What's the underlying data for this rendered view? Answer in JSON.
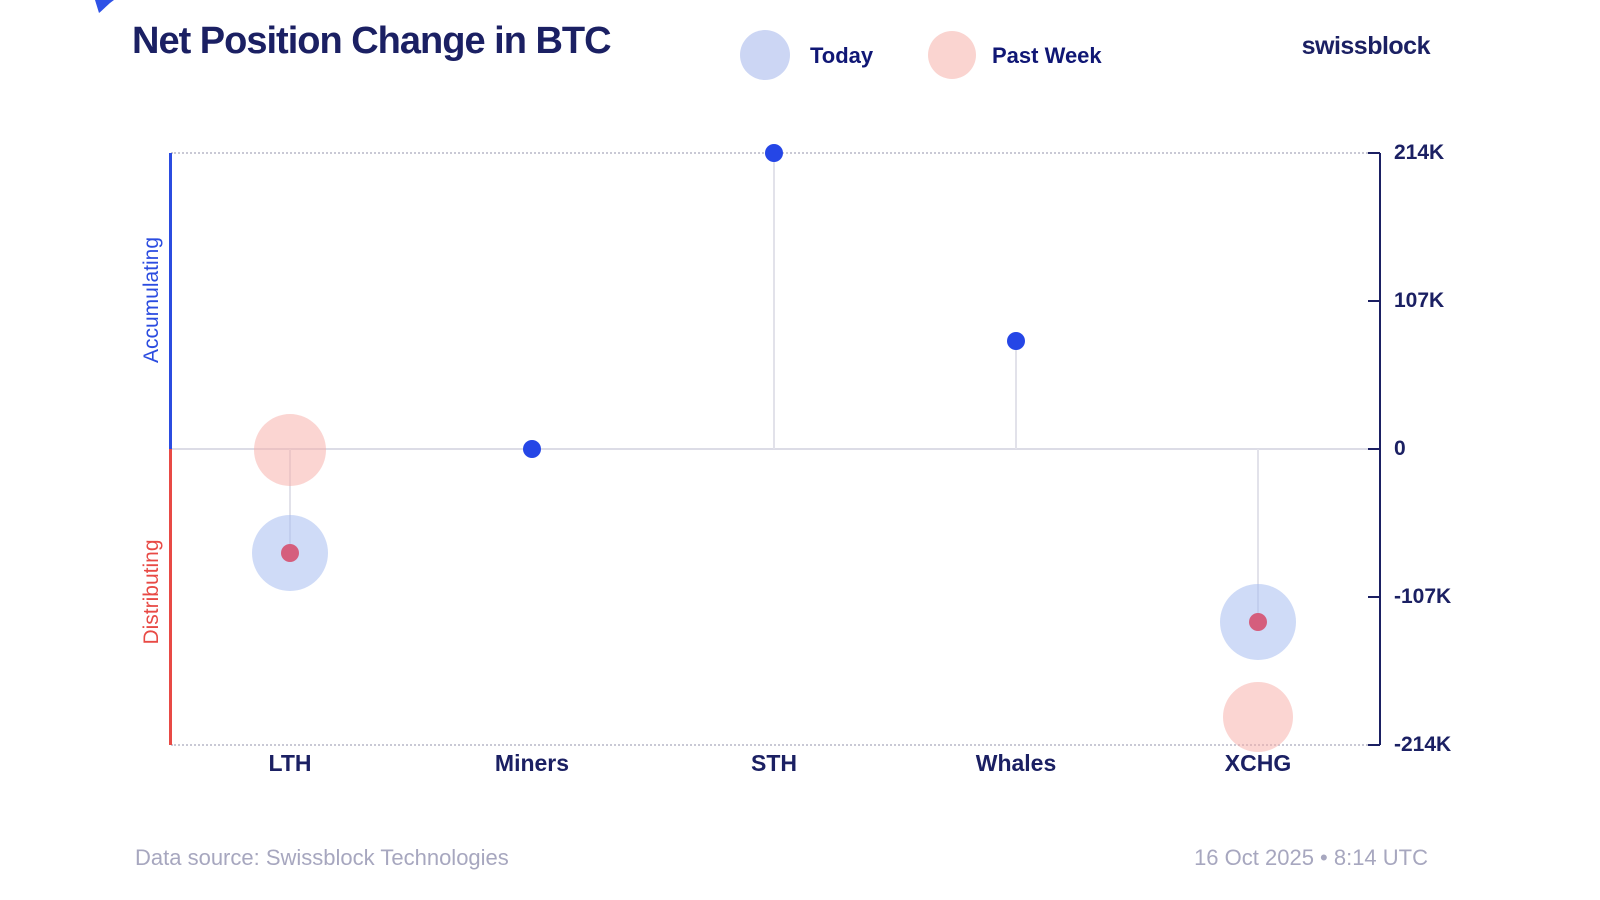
{
  "header": {
    "title": "Net Position Change in BTC",
    "logo": "swissblock",
    "legend": [
      {
        "label": "Today",
        "swatch": "light-blue"
      },
      {
        "label": "Past Week",
        "swatch": "light-pink"
      }
    ]
  },
  "axes": {
    "left_top_label": "Accumulating",
    "left_bottom_label": "Distributing",
    "ytick_labels": [
      "214K",
      "107K",
      "0",
      "-107K",
      "-214K"
    ]
  },
  "footer": {
    "source": "Data source: Swissblock Technologies",
    "timestamp": "16 Oct 2025 • 8:14 UTC"
  },
  "colors": {
    "navy_text": "#1b2063",
    "legend_text": "#101775",
    "accent_blue": "#2b4ce0",
    "accent_red": "#e84a45",
    "dot_blue": "#2546e6",
    "dot_crimson": "#d55e7d",
    "bubble_blue": "rgba(168,189,240,0.55)",
    "bubble_pink": "rgba(247,172,166,0.5)",
    "legend_swatch_blue": "#ccd6f4",
    "legend_swatch_pink": "#fad4d0",
    "grid": "#c9c9d5",
    "zero_line": "#dcdce6",
    "stem": "#e2e2ea",
    "footer_text": "#a7a7bf"
  },
  "chart_data": {
    "type": "lollipop",
    "title": "Net Position Change in BTC",
    "unit": "thousand BTC",
    "categories": [
      "LTH",
      "Miners",
      "STH",
      "Whales",
      "XCHG"
    ],
    "ylim": [
      -214,
      214
    ],
    "yticks": [
      214,
      107,
      0,
      -107,
      -214
    ],
    "ytick_labels": [
      "214K",
      "107K",
      "0",
      "-107K",
      "-214K"
    ],
    "grid": "dotted horizontal lines at +214K and -214K, solid light line at 0",
    "legend_position": "top",
    "series": [
      {
        "name": "Today",
        "values": [
          -75,
          0,
          214,
          78,
          -125
        ]
      },
      {
        "name": "Past Week",
        "values": [
          -1,
          null,
          null,
          null,
          -194
        ]
      }
    ],
    "annotations": {
      "positive_region": "Accumulating",
      "negative_region": "Distributing"
    },
    "marks": {
      "stems": [
        {
          "category": "LTH",
          "from": 0,
          "to": -75
        },
        {
          "category": "STH",
          "from": 0,
          "to": 214
        },
        {
          "category": "Whales",
          "from": 0,
          "to": 78
        },
        {
          "category": "XCHG",
          "from": 0,
          "to": -125
        }
      ],
      "bubbles": [
        {
          "category": "LTH",
          "series": "Past Week",
          "value": -1,
          "r": 36
        },
        {
          "category": "LTH",
          "series": "Today",
          "value": -75,
          "r": 38
        },
        {
          "category": "XCHG",
          "series": "Today",
          "value": -125,
          "r": 38
        },
        {
          "category": "XCHG",
          "series": "Past Week",
          "value": -194,
          "r": 35
        }
      ],
      "dots": [
        {
          "category": "LTH",
          "series": "Today",
          "value": -75,
          "sign": "negative"
        },
        {
          "category": "Miners",
          "series": "Today",
          "value": 0,
          "sign": "positive"
        },
        {
          "category": "STH",
          "series": "Today",
          "value": 214,
          "sign": "positive"
        },
        {
          "category": "Whales",
          "series": "Today",
          "value": 78,
          "sign": "positive"
        },
        {
          "category": "XCHG",
          "series": "Today",
          "value": -125,
          "sign": "negative"
        }
      ]
    }
  }
}
